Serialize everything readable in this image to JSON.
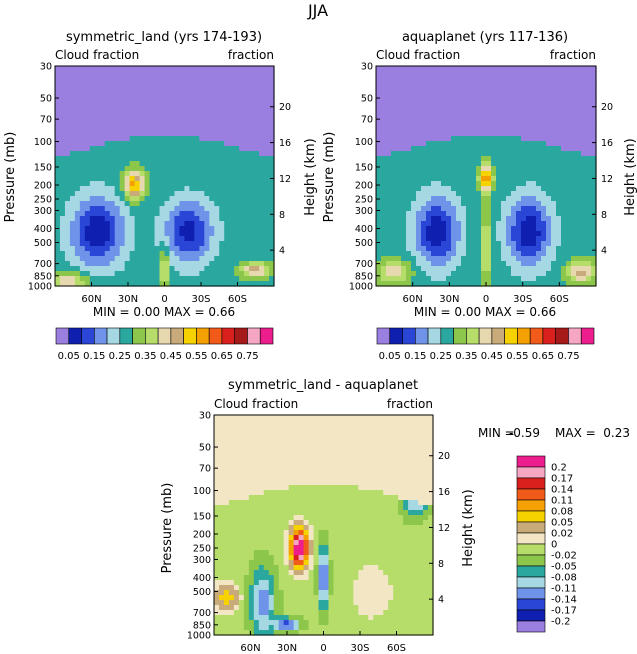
{
  "figure": {
    "title": "JJA"
  },
  "palette_top": [
    "#9b7fe0",
    "#0f1fb0",
    "#2a46d6",
    "#6f93e8",
    "#a5d8e3",
    "#2aa79e",
    "#8cc64a",
    "#b6dd6a",
    "#e8d8b0",
    "#c9aa7a",
    "#f5d200",
    "#f4a000",
    "#f25a1a",
    "#d9201c",
    "#a61a1a",
    "#f4a6c2",
    "#ee1d8e"
  ],
  "palette_diff": [
    "#9b7fe0",
    "#0f1fb0",
    "#2a46d6",
    "#6f93e8",
    "#a5d8e3",
    "#2aa79e",
    "#8cc64a",
    "#b6dd6a",
    "#f2e6c4",
    "#c9aa7a",
    "#f5d200",
    "#f4a000",
    "#f25a1a",
    "#d9201c",
    "#f4a6c2",
    "#ee1d8e"
  ],
  "chart_data": [
    {
      "type": "heatmap",
      "title": "symmetric_land (yrs 174-193)",
      "left_subtitle": "Cloud fraction",
      "right_subtitle": "fraction",
      "xlabel": "",
      "ylabel": "Pressure (mb)",
      "ylabel_right": "Height (km)",
      "x_ticks": [
        "60N",
        "30N",
        "0",
        "30S",
        "60S"
      ],
      "x_tick_values": [
        60,
        30,
        0,
        -30,
        -60
      ],
      "xlim": [
        90,
        -90
      ],
      "y_ticks": [
        "30",
        "50",
        "70",
        "100",
        "150",
        "200",
        "250",
        "300",
        "400",
        "500",
        "700",
        "850",
        "1000"
      ],
      "y_tick_values": [
        30,
        50,
        70,
        100,
        150,
        200,
        250,
        300,
        400,
        500,
        700,
        850,
        1000
      ],
      "ylim": [
        30,
        1000
      ],
      "y_scale": "log",
      "height_ticks": [
        "20",
        "16",
        "12",
        "8",
        "4"
      ],
      "height_values": [
        20,
        16,
        12,
        8,
        4
      ],
      "stats": "MIN =     0.00   MAX =     0.66",
      "min": 0.0,
      "max": 0.66,
      "colorbar_labels": [
        "0.05",
        "0.15",
        "0.25",
        "0.35",
        "0.45",
        "0.55",
        "0.65",
        "0.75"
      ],
      "contour_levels": [
        0.05,
        0.1,
        0.15,
        0.2,
        0.25,
        0.3,
        0.35,
        0.4,
        0.45,
        0.5,
        0.55,
        0.6,
        0.65,
        0.7,
        0.75
      ],
      "background_value": 0.28,
      "features": [
        {
          "lat": 55,
          "p": 420,
          "w": 22,
          "h": 0.55,
          "v": -0.22
        },
        {
          "lat": -20,
          "p": 420,
          "w": 20,
          "h": 0.5,
          "v": -0.2
        },
        {
          "lat": 25,
          "p": 200,
          "w": 8,
          "h": 0.22,
          "v": 0.3
        },
        {
          "lat": 0,
          "p": 750,
          "w": 3,
          "h": 0.3,
          "v": 0.2
        },
        {
          "lat": 78,
          "p": 920,
          "w": 14,
          "h": 0.12,
          "v": 0.18
        },
        {
          "lat": -75,
          "p": 780,
          "w": 12,
          "h": 0.12,
          "v": 0.2
        }
      ],
      "upper_value": 0.03
    },
    {
      "type": "heatmap",
      "title": "aquaplanet (yrs 117-136)",
      "left_subtitle": "Cloud fraction",
      "right_subtitle": "fraction",
      "xlabel": "",
      "ylabel": "Pressure (mb)",
      "ylabel_right": "Height (km)",
      "x_ticks": [
        "60N",
        "30N",
        "0",
        "30S",
        "60S"
      ],
      "x_tick_values": [
        60,
        30,
        0,
        -30,
        -60
      ],
      "xlim": [
        90,
        -90
      ],
      "y_ticks": [
        "30",
        "50",
        "70",
        "100",
        "150",
        "200",
        "250",
        "300",
        "400",
        "500",
        "700",
        "850",
        "1000"
      ],
      "y_tick_values": [
        30,
        50,
        70,
        100,
        150,
        200,
        250,
        300,
        400,
        500,
        700,
        850,
        1000
      ],
      "ylim": [
        30,
        1000
      ],
      "y_scale": "log",
      "height_ticks": [
        "20",
        "16",
        "12",
        "8",
        "4"
      ],
      "height_values": [
        20,
        16,
        12,
        8,
        4
      ],
      "stats": "MIN =     0.00   MAX =     0.66",
      "min": 0.0,
      "max": 0.66,
      "colorbar_labels": [
        "0.05",
        "0.15",
        "0.25",
        "0.35",
        "0.45",
        "0.55",
        "0.65",
        "0.75"
      ],
      "contour_levels": [
        0.05,
        0.1,
        0.15,
        0.2,
        0.25,
        0.3,
        0.35,
        0.4,
        0.45,
        0.5,
        0.55,
        0.6,
        0.65,
        0.7,
        0.75
      ],
      "background_value": 0.28,
      "features": [
        {
          "lat": 40,
          "p": 420,
          "w": 18,
          "h": 0.55,
          "v": -0.22
        },
        {
          "lat": -35,
          "p": 420,
          "w": 18,
          "h": 0.55,
          "v": -0.22
        },
        {
          "lat": 0,
          "p": 180,
          "w": 5,
          "h": 0.2,
          "v": 0.35
        },
        {
          "lat": 0,
          "p": 550,
          "w": 4,
          "h": 0.55,
          "v": 0.15
        },
        {
          "lat": 75,
          "p": 800,
          "w": 14,
          "h": 0.18,
          "v": 0.15
        },
        {
          "lat": -78,
          "p": 800,
          "w": 12,
          "h": 0.18,
          "v": 0.18
        }
      ],
      "upper_value": 0.03
    },
    {
      "type": "heatmap",
      "title": "symmetric_land - aquaplanet",
      "left_subtitle": "Cloud fraction",
      "right_subtitle": "fraction",
      "xlabel": "",
      "ylabel": "Pressure (mb)",
      "ylabel_right": "Height (km)",
      "x_ticks": [
        "60N",
        "30N",
        "0",
        "30S",
        "60S"
      ],
      "x_tick_values": [
        60,
        30,
        0,
        -30,
        -60
      ],
      "xlim": [
        90,
        -90
      ],
      "y_ticks": [
        "30",
        "50",
        "70",
        "100",
        "150",
        "200",
        "250",
        "300",
        "400",
        "500",
        "700",
        "850",
        "1000"
      ],
      "y_tick_values": [
        30,
        50,
        70,
        100,
        150,
        200,
        250,
        300,
        400,
        500,
        700,
        850,
        1000
      ],
      "ylim": [
        30,
        1000
      ],
      "y_scale": "log",
      "height_ticks": [
        "20",
        "16",
        "12",
        "8",
        "4"
      ],
      "height_values": [
        20,
        16,
        12,
        8,
        4
      ],
      "stats_min_label": "MIN =",
      "stats_min_value": "-0.59",
      "stats_max_label": "MAX =",
      "stats_max_value": "0.23",
      "min": -0.59,
      "max": 0.23,
      "colorbar_labels": [
        "0.2",
        "0.17",
        "0.14",
        "0.11",
        "0.08",
        "0.05",
        "0.02",
        "0",
        "-0.02",
        "-0.05",
        "-0.08",
        "-0.11",
        "-0.14",
        "-0.17",
        "-0.2"
      ],
      "contour_levels": [
        -0.2,
        -0.17,
        -0.14,
        -0.11,
        -0.08,
        -0.05,
        -0.02,
        0,
        0.02,
        0.05,
        0.08,
        0.11,
        0.14,
        0.17,
        0.2
      ],
      "background_value": -0.01,
      "features": [
        {
          "lat": 20,
          "p": 250,
          "w": 7,
          "h": 0.3,
          "v": 0.26
        },
        {
          "lat": 50,
          "p": 600,
          "w": 10,
          "h": 0.55,
          "v": -0.12
        },
        {
          "lat": 0,
          "p": 400,
          "w": 4,
          "h": 0.5,
          "v": -0.15
        },
        {
          "lat": 80,
          "p": 550,
          "w": 10,
          "h": 0.2,
          "v": 0.08
        },
        {
          "lat": -40,
          "p": 500,
          "w": 15,
          "h": 0.4,
          "v": 0.03
        },
        {
          "lat": -75,
          "p": 120,
          "w": 10,
          "h": 0.25,
          "v": -0.1
        },
        {
          "lat": 30,
          "p": 850,
          "w": 10,
          "h": 0.1,
          "v": -0.15
        }
      ],
      "upper_value": 0.0
    }
  ]
}
